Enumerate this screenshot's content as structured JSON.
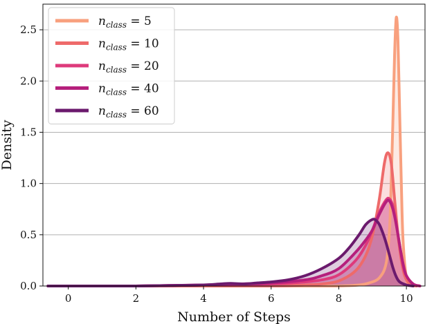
{
  "chart_data": {
    "type": "line",
    "xlabel": "Number of Steps",
    "ylabel": "Density",
    "xlim": [
      -0.75,
      10.55
    ],
    "ylim": [
      0,
      2.75
    ],
    "x_ticks": [
      0,
      2,
      4,
      6,
      8,
      10
    ],
    "y_ticks": [
      0.0,
      0.5,
      1.0,
      1.5,
      2.0,
      2.5
    ],
    "x_tick_labels": [
      "0",
      "2",
      "4",
      "6",
      "8",
      "10"
    ],
    "y_tick_labels": [
      "0.0",
      "0.5",
      "1.0",
      "1.5",
      "2.0",
      "2.5"
    ],
    "grid": "horizontal",
    "legend_position": "top-left",
    "series": [
      {
        "name": "n_class = 5",
        "legend_base": "n",
        "legend_sub": "class",
        "legend_rest": " = 5",
        "color": "#F8A07E",
        "x": [
          -0.6,
          0,
          2,
          4,
          6,
          7,
          8,
          8.6,
          8.9,
          9.2,
          9.4,
          9.5,
          9.55,
          9.6,
          9.65,
          9.7,
          9.75,
          9.8,
          9.85,
          9.9,
          10.0,
          10.1,
          10.3
        ],
        "y": [
          0,
          0,
          0,
          0,
          0,
          0,
          0,
          0.01,
          0.03,
          0.08,
          0.22,
          0.55,
          1.0,
          1.6,
          2.25,
          2.62,
          2.4,
          1.7,
          1.0,
          0.45,
          0.08,
          0.01,
          0
        ]
      },
      {
        "name": "n_class = 10",
        "legend_base": "n",
        "legend_sub": "class",
        "legend_rest": " = 10",
        "color": "#EE6A6A",
        "x": [
          -0.6,
          0,
          2,
          4,
          6,
          7,
          7.5,
          8.0,
          8.5,
          8.8,
          9.0,
          9.2,
          9.35,
          9.45,
          9.55,
          9.65,
          9.75,
          9.85,
          9.95,
          10.1,
          10.3
        ],
        "y": [
          0,
          0,
          0,
          0,
          0,
          0.01,
          0.02,
          0.05,
          0.15,
          0.3,
          0.5,
          0.85,
          1.2,
          1.3,
          1.2,
          0.85,
          0.5,
          0.25,
          0.1,
          0.02,
          0
        ]
      },
      {
        "name": "n_class = 20",
        "legend_base": "n",
        "legend_sub": "class",
        "legend_rest": " = 20",
        "color": "#DE3A7B",
        "x": [
          -0.6,
          0,
          2,
          4,
          6,
          7,
          7.5,
          8.0,
          8.5,
          8.8,
          9.0,
          9.2,
          9.4,
          9.5,
          9.6,
          9.7,
          9.8,
          9.9,
          10.0,
          10.2,
          10.4
        ],
        "y": [
          0,
          0,
          0,
          0.01,
          0.02,
          0.04,
          0.06,
          0.11,
          0.25,
          0.4,
          0.55,
          0.72,
          0.84,
          0.85,
          0.78,
          0.6,
          0.4,
          0.2,
          0.1,
          0.02,
          0
        ]
      },
      {
        "name": "n_class = 40",
        "legend_base": "n",
        "legend_sub": "class",
        "legend_rest": " = 40",
        "color": "#B51F7C",
        "x": [
          -0.6,
          0,
          2,
          3,
          4,
          4.5,
          5,
          6,
          7,
          7.5,
          8.0,
          8.5,
          8.8,
          9.0,
          9.2,
          9.4,
          9.5,
          9.6,
          9.7,
          9.8,
          9.9,
          10.0,
          10.2,
          10.4
        ],
        "y": [
          0,
          0,
          0,
          0.005,
          0.01,
          0.015,
          0.02,
          0.03,
          0.06,
          0.1,
          0.17,
          0.33,
          0.45,
          0.55,
          0.7,
          0.82,
          0.83,
          0.75,
          0.6,
          0.4,
          0.22,
          0.1,
          0.02,
          0
        ]
      },
      {
        "name": "n_class = 60",
        "legend_base": "n",
        "legend_sub": "class",
        "legend_rest": " = 60",
        "color": "#6B1A6D",
        "x": [
          -0.6,
          0,
          2,
          3,
          4,
          4.5,
          4.8,
          5.2,
          5.6,
          6,
          6.5,
          7,
          7.5,
          8.0,
          8.3,
          8.6,
          8.8,
          9.0,
          9.1,
          9.2,
          9.3,
          9.4,
          9.5,
          9.6,
          9.7,
          9.8,
          10.0,
          10.2
        ],
        "y": [
          0,
          0,
          0,
          0.005,
          0.01,
          0.02,
          0.025,
          0.02,
          0.03,
          0.04,
          0.06,
          0.1,
          0.17,
          0.27,
          0.37,
          0.5,
          0.6,
          0.65,
          0.64,
          0.6,
          0.52,
          0.42,
          0.3,
          0.18,
          0.09,
          0.04,
          0.01,
          0
        ]
      }
    ]
  }
}
